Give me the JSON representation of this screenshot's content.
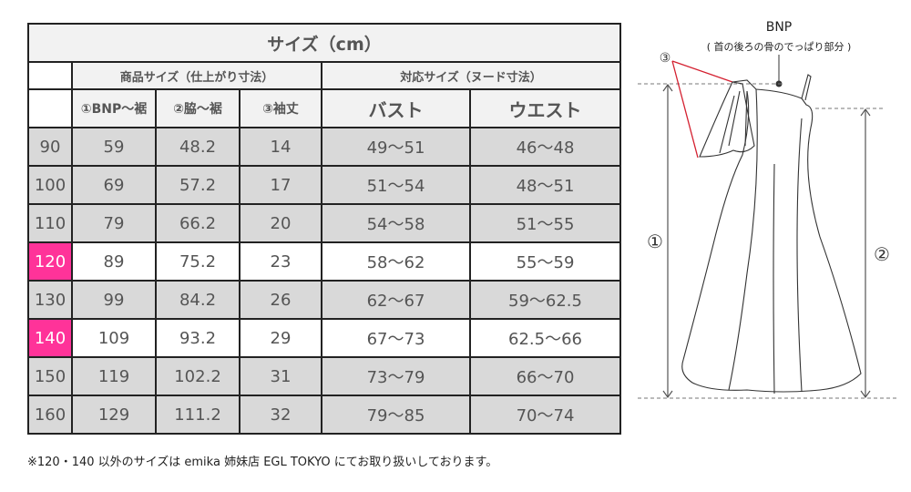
{
  "table": {
    "title": "サイズ（cm）",
    "group_headers": [
      "商品サイズ（仕上がり寸法）",
      "対応サイズ（ヌード寸法）"
    ],
    "column_headers": [
      "①BNP～裾",
      "②脇～裾",
      "③袖丈",
      "バスト",
      "ウエスト"
    ],
    "rows": [
      {
        "size": "90",
        "bnp": "59",
        "side": "48.2",
        "sleeve": "14",
        "bust": "49～51",
        "waist": "46～48"
      },
      {
        "size": "100",
        "bnp": "69",
        "side": "57.2",
        "sleeve": "17",
        "bust": "51～54",
        "waist": "48～51"
      },
      {
        "size": "110",
        "bnp": "79",
        "side": "66.2",
        "sleeve": "20",
        "bust": "54～58",
        "waist": "51～55"
      },
      {
        "size": "120",
        "bnp": "89",
        "side": "75.2",
        "sleeve": "23",
        "bust": "58～62",
        "waist": "55～59"
      },
      {
        "size": "130",
        "bnp": "99",
        "side": "84.2",
        "sleeve": "26",
        "bust": "62～67",
        "waist": "59～62.5"
      },
      {
        "size": "140",
        "bnp": "109",
        "side": "93.2",
        "sleeve": "29",
        "bust": "67～73",
        "waist": "62.5～66"
      },
      {
        "size": "150",
        "bnp": "119",
        "side": "102.2",
        "sleeve": "31",
        "bust": "73～79",
        "waist": "66～70"
      },
      {
        "size": "160",
        "bnp": "129",
        "side": "111.2",
        "sleeve": "32",
        "bust": "79～85",
        "waist": "70～74"
      }
    ],
    "highlighted_sizes": [
      "120",
      "140"
    ],
    "highlight_color": "#ff3399"
  },
  "note": "※120・140 以外のサイズは emika 姉妹店 EGL TOKYO にてお取り扱いしております。",
  "diagram": {
    "bnp_label": "BNP",
    "bnp_desc": "( 首の後ろの骨のでっぱり部分 )",
    "marker_1": "①",
    "marker_2": "②",
    "marker_3": "③"
  }
}
